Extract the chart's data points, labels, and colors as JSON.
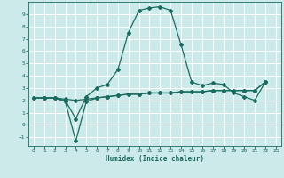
{
  "xlabel": "Humidex (Indice chaleur)",
  "ylabel": "",
  "bg_color": "#cceaea",
  "line_color": "#1a6b60",
  "grid_color": "#ffffff",
  "xlim": [
    -0.5,
    23.5
  ],
  "ylim": [
    -1.7,
    10.0
  ],
  "xticks": [
    0,
    1,
    2,
    3,
    4,
    5,
    6,
    7,
    8,
    9,
    10,
    11,
    12,
    13,
    14,
    15,
    16,
    17,
    18,
    19,
    20,
    21,
    22,
    23
  ],
  "yticks": [
    -1,
    0,
    1,
    2,
    3,
    4,
    5,
    6,
    7,
    8,
    9
  ],
  "curve1_x": [
    0,
    1,
    2,
    3,
    4,
    5,
    6,
    7,
    8,
    9,
    10,
    11,
    12,
    13,
    14,
    15,
    16,
    17,
    18,
    19,
    20,
    21,
    22
  ],
  "curve1_y": [
    2.2,
    2.2,
    2.2,
    2.0,
    0.5,
    2.3,
    3.0,
    3.3,
    4.5,
    7.5,
    9.3,
    9.5,
    9.6,
    9.3,
    6.5,
    3.5,
    3.2,
    3.4,
    3.3,
    2.6,
    2.3,
    2.0,
    3.5
  ],
  "curve2_x": [
    0,
    1,
    2,
    3,
    4,
    5,
    6,
    7,
    8,
    9,
    10,
    11,
    12,
    13,
    14,
    15,
    16,
    17,
    18,
    19,
    20,
    21,
    22
  ],
  "curve2_y": [
    2.2,
    2.2,
    2.2,
    2.1,
    2.0,
    2.1,
    2.2,
    2.3,
    2.4,
    2.5,
    2.5,
    2.6,
    2.6,
    2.6,
    2.7,
    2.7,
    2.7,
    2.8,
    2.8,
    2.8,
    2.8,
    2.8,
    3.5
  ],
  "curve3_x": [
    0,
    1,
    2,
    3,
    4,
    5,
    6,
    7,
    8,
    9,
    10,
    11,
    12,
    13,
    14,
    15,
    16,
    17,
    18,
    19,
    20,
    21,
    22
  ],
  "curve3_y": [
    2.2,
    2.2,
    2.2,
    1.9,
    -1.3,
    1.9,
    2.2,
    2.3,
    2.4,
    2.5,
    2.5,
    2.6,
    2.6,
    2.6,
    2.7,
    2.7,
    2.7,
    2.8,
    2.8,
    2.8,
    2.8,
    2.8,
    3.5
  ],
  "marker_size": 2.0,
  "line_width": 0.9
}
